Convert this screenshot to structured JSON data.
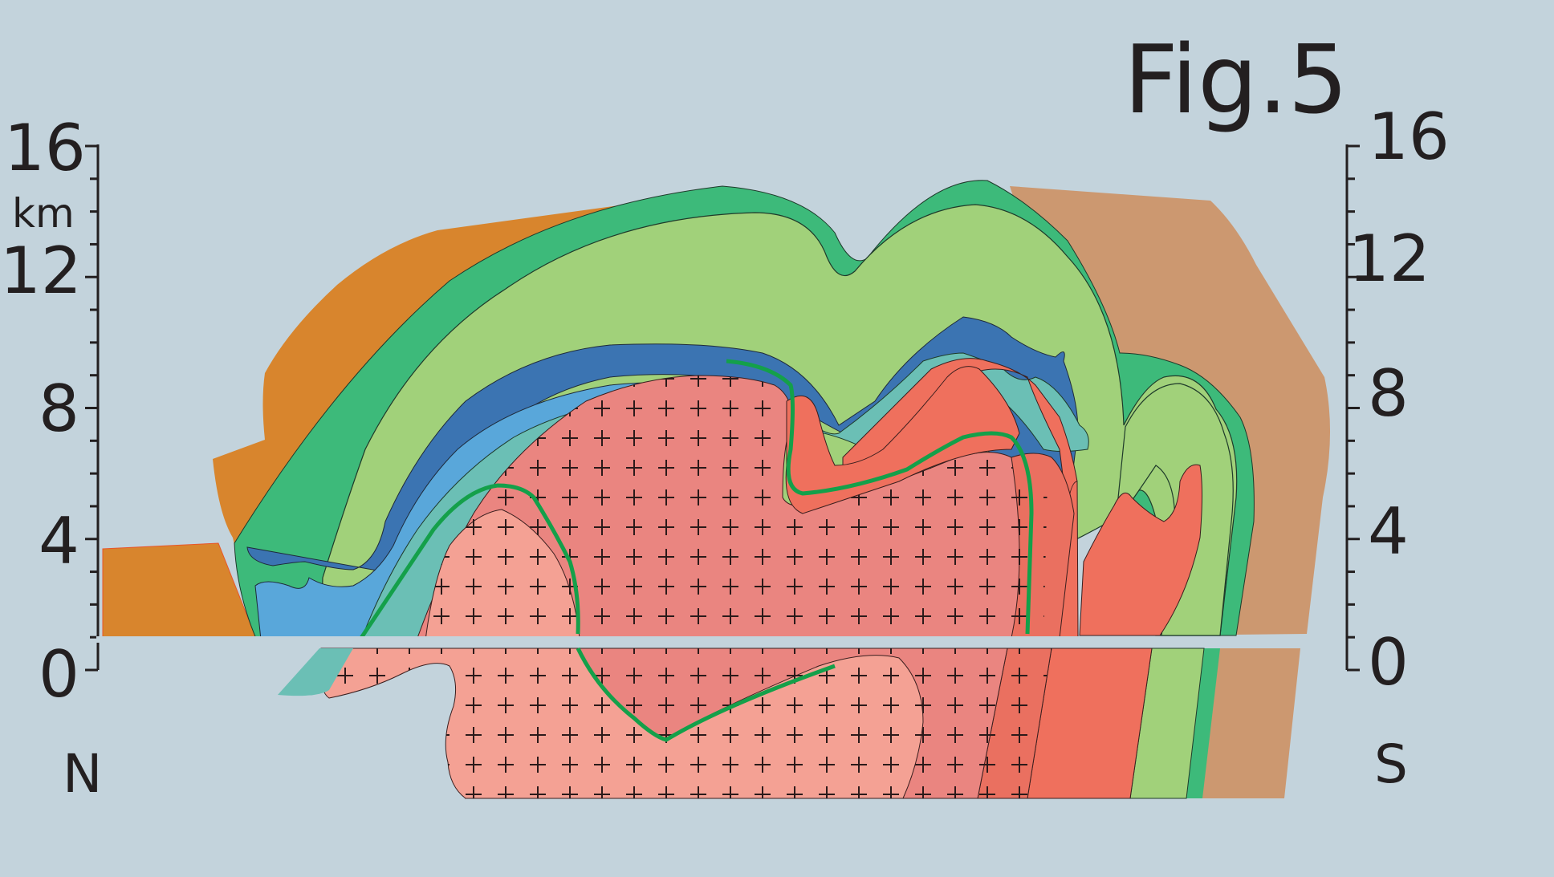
{
  "figure": {
    "title": "Fig.5",
    "unit": "km",
    "direction_left": "N",
    "direction_right": "S"
  },
  "left_axis": {
    "tick_labels": [
      "16",
      "12",
      "8",
      "4",
      "0"
    ]
  },
  "right_axis": {
    "tick_labels": [
      "16",
      "12",
      "8",
      "4",
      "0"
    ]
  },
  "colors": {
    "background": "#c3d3dc",
    "orange_unit": "#d8852d",
    "tan_unit": "#cc9870",
    "dark_green_layer": "#3dba7a",
    "light_green_layer": "#a1d17a",
    "dark_blue_layer": "#3b74b2",
    "light_blue_layer": "#59a7da",
    "teal_layer": "#6bbfb5",
    "granite_pink": "#ea8580",
    "granite_light": "#f4a194",
    "red_orange": "#ef705d",
    "green_contact_line": "#14a04a"
  }
}
